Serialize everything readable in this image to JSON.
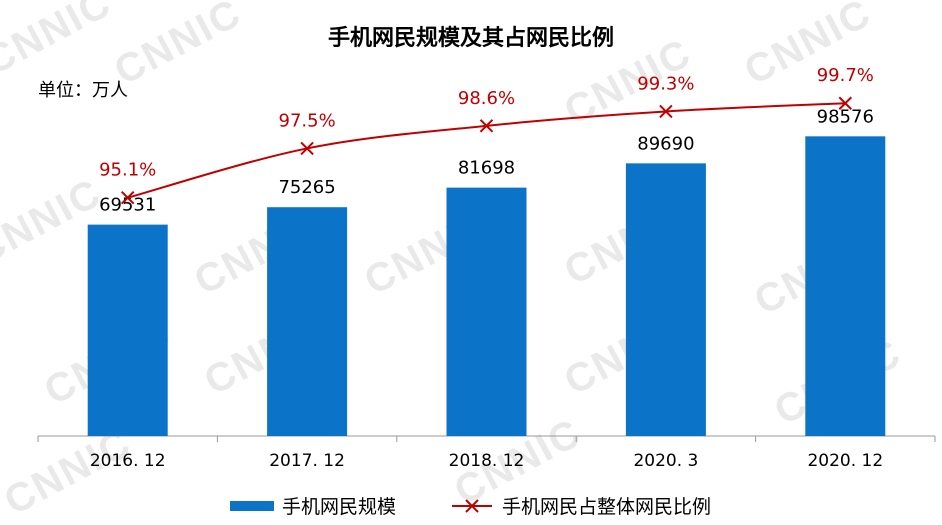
{
  "watermark": "CNNIC",
  "chart_data": {
    "type": "bar",
    "title": "手机网民规模及其占网民比例",
    "unit": "单位：万人",
    "categories": [
      "2016. 12",
      "2017. 12",
      "2018. 12",
      "2020. 3",
      "2020. 12"
    ],
    "series": [
      {
        "name": "手机网民规模",
        "type": "bar",
        "color": "#0c74c8",
        "values": [
          69531,
          75265,
          81698,
          89690,
          98576
        ],
        "labels": [
          "69531",
          "75265",
          "81698",
          "89690",
          "98576"
        ]
      },
      {
        "name": "手机网民占整体网民比例",
        "type": "line",
        "marker": "x",
        "color": "#c00000",
        "values": [
          95.1,
          97.5,
          98.6,
          99.3,
          99.7
        ],
        "labels": [
          "95.1%",
          "97.5%",
          "98.6%",
          "99.3%",
          "99.7%"
        ]
      }
    ],
    "bar_axis_range": [
      0,
      125000
    ],
    "line_axis_range": [
      83.5,
      102
    ],
    "grid": false,
    "legend_position": "bottom"
  }
}
